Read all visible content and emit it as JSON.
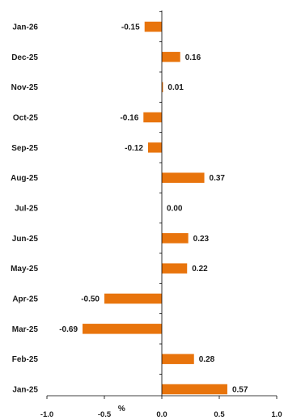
{
  "chart_data": {
    "type": "bar",
    "orientation": "horizontal",
    "categories": [
      "Jan-26",
      "Dec-25",
      "Nov-25",
      "Oct-25",
      "Sep-25",
      "Aug-25",
      "Jul-25",
      "Jun-25",
      "May-25",
      "Apr-25",
      "Mar-25",
      "Feb-25",
      "Jan-25"
    ],
    "values": [
      -0.15,
      0.16,
      0.01,
      -0.16,
      -0.12,
      0.37,
      0.0,
      0.23,
      0.22,
      -0.5,
      -0.69,
      0.28,
      0.57
    ],
    "value_labels": [
      "-0.15",
      "0.16",
      "0.01",
      "-0.16",
      "-0.12",
      "0.37",
      "0.00",
      "0.23",
      "0.22",
      "-0.50",
      "-0.69",
      "0.28",
      "0.57"
    ],
    "xlabel": "%",
    "xlim": [
      -1.0,
      1.0
    ],
    "xticks": [
      -1.0,
      -0.5,
      0.0,
      0.5,
      1.0
    ],
    "xtick_labels": [
      "-1.0",
      "-0.5",
      "0.0",
      "0.5",
      "1.0"
    ],
    "grid": false,
    "legend": "none",
    "bar_color": "#E8740C"
  }
}
